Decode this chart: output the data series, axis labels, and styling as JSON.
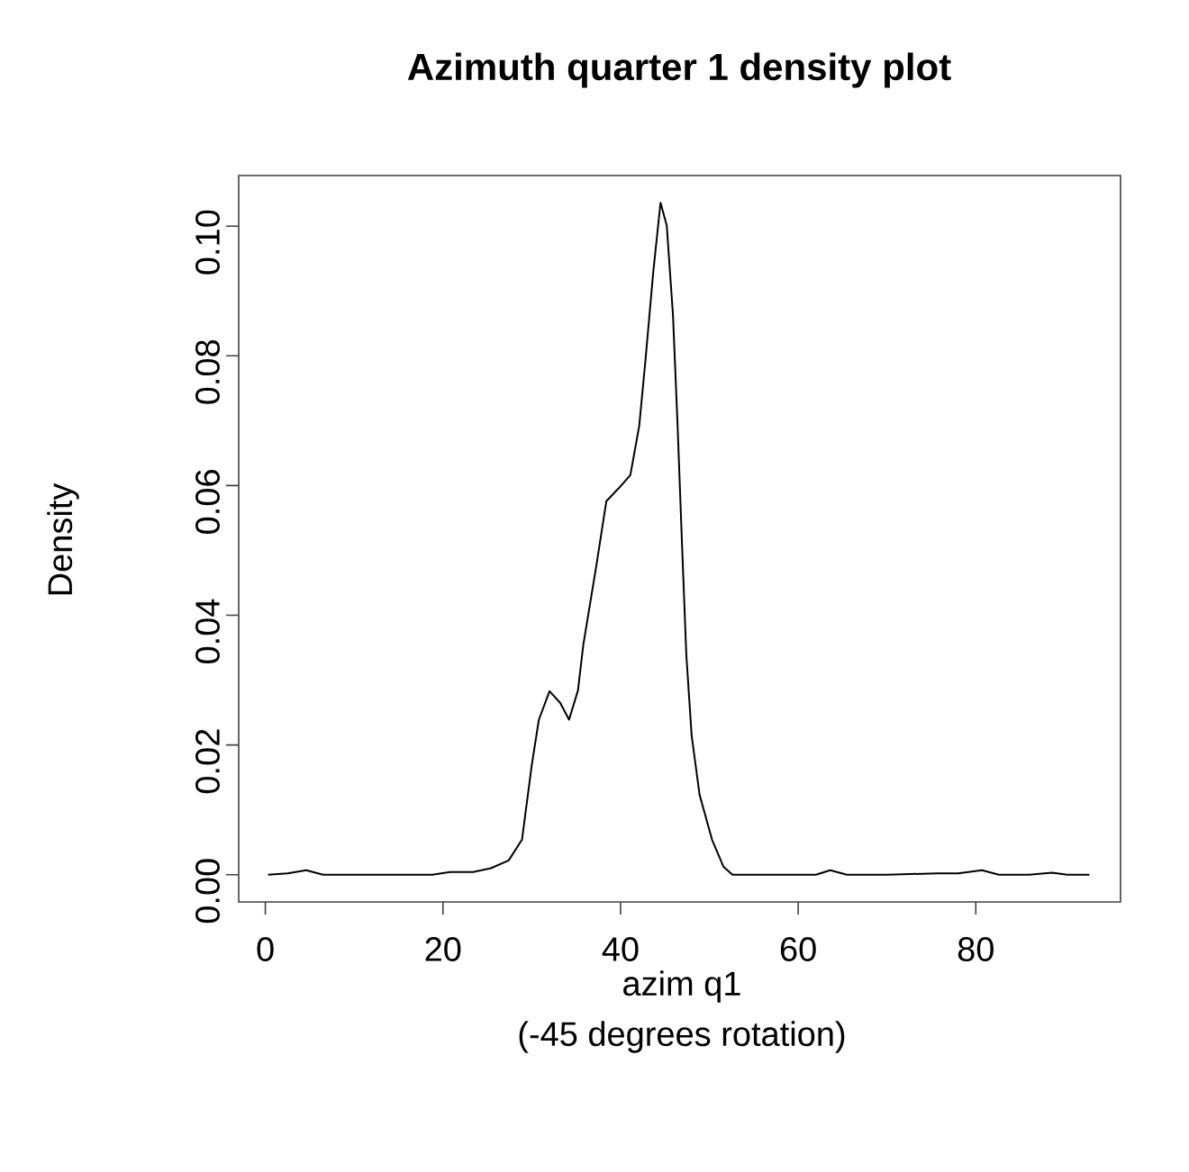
{
  "chart_data": {
    "type": "line",
    "title": "Azimuth quarter 1 density plot",
    "xlabel": "azim q1",
    "ylabel": "Density",
    "annotations": [
      "(-45 degrees rotation)"
    ],
    "xlim": [
      -3,
      96.3
    ],
    "ylim": [
      -0.0042,
      0.1078
    ],
    "xticks": [
      0,
      20,
      40,
      60,
      80
    ],
    "yticks": [
      {
        "value": 0,
        "label": "0.00"
      },
      {
        "value": 0.02,
        "label": "0.02"
      },
      {
        "value": 0.04,
        "label": "0.04"
      },
      {
        "value": 0.06,
        "label": "0.06"
      },
      {
        "value": 0.08,
        "label": "0.08"
      },
      {
        "value": 0.1,
        "label": "0.10"
      }
    ],
    "marker": "none",
    "line_style": "solid",
    "series": [
      {
        "color": "#000000",
        "x": [
          0.3,
          2.5,
          4.6,
          6.5,
          10,
          15,
          18.8,
          20.8,
          23.4,
          25.4,
          27.4,
          28.9,
          30.0,
          30.8,
          32.0,
          33.2,
          34.2,
          35.2,
          35.8,
          37.3,
          38.4,
          39.8,
          41.1,
          42.1,
          42.8,
          43.7,
          44.5,
          45.2,
          45.9,
          46.4,
          46.9,
          47.4,
          48.0,
          48.9,
          50.3,
          51.6,
          52.6,
          55,
          60,
          62,
          63.6,
          65.5,
          70,
          75.6,
          78,
          80.7,
          82.6,
          86,
          88.6,
          90.3,
          92.8
        ],
        "values": [
          0,
          0.0002,
          0.0007,
          0,
          0,
          0,
          0,
          0.0004,
          0.0004,
          0.001,
          0.0022,
          0.0054,
          0.0169,
          0.0239,
          0.0283,
          0.0265,
          0.0239,
          0.0284,
          0.0354,
          0.0479,
          0.0576,
          0.0596,
          0.0616,
          0.0692,
          0.0793,
          0.0932,
          0.1036,
          0.1001,
          0.0863,
          0.07,
          0.0516,
          0.034,
          0.0215,
          0.0123,
          0.0054,
          0.0012,
          0,
          0,
          0,
          0,
          0.0007,
          0,
          0,
          0.0002,
          0.0002,
          0.0007,
          0,
          0,
          0.0003,
          0,
          0
        ]
      }
    ]
  }
}
